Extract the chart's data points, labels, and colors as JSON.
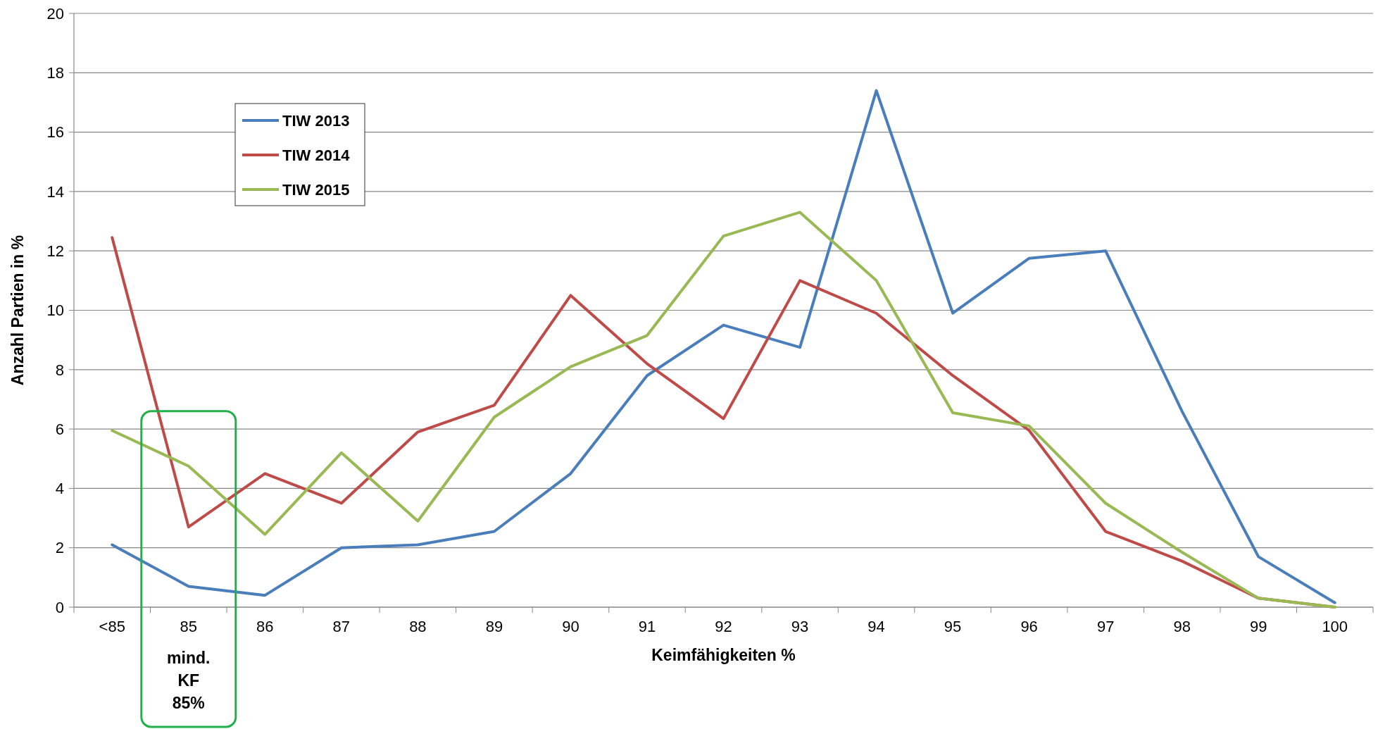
{
  "chart_data": {
    "type": "line",
    "xlabel": "Keimfähigkeiten %",
    "ylabel": "Anzahl Partien in %",
    "categories": [
      "<85",
      "85",
      "86",
      "87",
      "88",
      "89",
      "90",
      "91",
      "92",
      "93",
      "94",
      "95",
      "96",
      "97",
      "98",
      "99",
      "100"
    ],
    "series": [
      {
        "name": "TIW 2013",
        "color": "#4a7ebb",
        "values": [
          2.1,
          0.7,
          0.4,
          2.0,
          2.1,
          2.55,
          4.5,
          7.8,
          9.5,
          8.75,
          17.4,
          9.9,
          11.75,
          12.0,
          6.6,
          1.7,
          0.15
        ]
      },
      {
        "name": "TIW 2014",
        "color": "#be4b48",
        "values": [
          12.45,
          2.7,
          4.5,
          3.5,
          5.9,
          6.8,
          10.5,
          8.2,
          6.35,
          11.0,
          9.9,
          7.8,
          5.95,
          2.55,
          1.55,
          0.3,
          0
        ]
      },
      {
        "name": "TIW 2015",
        "color": "#98b954",
        "values": [
          5.95,
          4.75,
          2.45,
          5.2,
          2.9,
          6.4,
          8.1,
          9.15,
          12.5,
          13.3,
          11.0,
          6.55,
          6.1,
          3.5,
          1.85,
          0.3,
          0
        ]
      }
    ],
    "ylim": [
      0,
      20
    ],
    "yticks": [
      0,
      2,
      4,
      6,
      8,
      10,
      12,
      14,
      16,
      18,
      20
    ],
    "grid": "y",
    "legend": "top left",
    "marker": "none",
    "line_style": "solid",
    "annotations": [
      "mind.\nKF\n85%"
    ]
  }
}
